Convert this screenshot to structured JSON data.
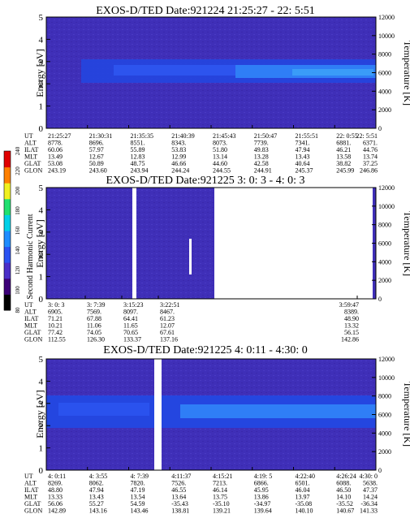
{
  "chart_data": [
    {
      "type": "heatmap",
      "title": "EXOS-D/TED   Date:921224  21:25:27 - 22: 5:51",
      "ylabel": "Energy [eV]",
      "ylabel_right": "Temperature [K]",
      "ylim": [
        0,
        5
      ],
      "yticks": [
        "0",
        "1",
        "2",
        "3",
        "4",
        "5"
      ],
      "y2lim": [
        0,
        12000
      ],
      "y2ticks": [
        "0",
        "2000",
        "4000",
        "6000",
        "8000",
        "10000",
        "12000"
      ],
      "t_start": "21:25:27",
      "t_end": "22: 5:51",
      "bands": [
        {
          "from": 2.0,
          "to": 3.1,
          "level": 140
        },
        {
          "from": 2.3,
          "to": 2.8,
          "level": 150
        }
      ],
      "table": {
        "rows": [
          "UT",
          "ALT",
          "ILAT",
          "MLT",
          "GLAT",
          "GLON"
        ],
        "columns": [
          [
            "21:25:27",
            "8778.",
            "60.06",
            "13.49",
            "53.08",
            "243.19"
          ],
          [
            "21:30:31",
            "8696.",
            "57.97",
            "12.67",
            "50.89",
            "243.60"
          ],
          [
            "21:35:35",
            "8551.",
            "55.89",
            "12.83",
            "48.75",
            "243.94"
          ],
          [
            "21:40:39",
            "8343.",
            "53.83",
            "12.99",
            "46.66",
            "244.24"
          ],
          [
            "21:45:43",
            "8073.",
            "51.80",
            "13.14",
            "44.60",
            "244.55"
          ],
          [
            "21:50:47",
            "7739.",
            "49.83",
            "13.28",
            "42.58",
            "244.91"
          ],
          [
            "21:55:51",
            "7341.",
            "47.94",
            "13.43",
            "40.64",
            "245.37"
          ],
          [
            "22: 0:55",
            "6881.",
            "46.21",
            "13.58",
            "38.82",
            "245.99"
          ],
          [
            "22: 5:51",
            "6371.",
            "44.76",
            "13.74",
            "37.25",
            "246.86"
          ]
        ]
      }
    },
    {
      "type": "heatmap",
      "title": "EXOS-D/TED   Date:921225  3: 0: 3 - 4: 0: 3",
      "ylabel": "Energy [eV]",
      "ylabel_right": "Temperature [K]",
      "ylim": [
        0,
        5
      ],
      "yticks": [
        "0",
        "1",
        "2",
        "3",
        "4",
        "5"
      ],
      "y2lim": [
        0,
        12000
      ],
      "y2ticks": [
        "0",
        "2000",
        "4000",
        "6000",
        "8000",
        "10000",
        "12000"
      ],
      "t_start": "3: 0: 3",
      "t_end": "3:59:47",
      "data_gaps": [
        [
          "3:13:00",
          "3:14:00"
        ],
        [
          "3:22:51",
          "3:59:47"
        ]
      ],
      "table": {
        "rows": [
          "UT",
          "ALT",
          "ILAT",
          "MLT",
          "GLAT",
          "GLON"
        ],
        "columns": [
          [
            "3: 0: 3",
            "6905.",
            "71.21",
            "10.21",
            "77.42",
            "112.55"
          ],
          [
            "3: 7:39",
            "7569.",
            "67.88",
            "11.06",
            "74.05",
            "126.30"
          ],
          [
            "3:15:23",
            "8097.",
            "64.41",
            "11.65",
            "70.65",
            "133.37"
          ],
          [
            "3:22:51",
            "8467.",
            "61.23",
            "12.07",
            "67.61",
            "137.16"
          ],
          [
            "3:59:47",
            "8389.",
            "48.90",
            "13.32",
            "56.15",
            "142.86"
          ]
        ]
      }
    },
    {
      "type": "heatmap",
      "title": "EXOS-D/TED   Date:921225  4: 0:11 - 4:30: 0",
      "ylabel": "Energy [eV]",
      "ylabel_right": "Temperature [K]",
      "ylim": [
        0,
        5
      ],
      "yticks": [
        "0",
        "1",
        "2",
        "3",
        "4",
        "5"
      ],
      "y2lim": [
        0,
        12000
      ],
      "y2ticks": [
        "0",
        "2000",
        "4000",
        "6000",
        "8000",
        "10000",
        "12000"
      ],
      "t_start": "4: 0:11",
      "t_end": "4:30: 0",
      "data_gaps": [
        [
          "4: 8:40",
          "4: 9:40"
        ]
      ],
      "bands": [
        {
          "from": 2.0,
          "to": 3.4,
          "level": 140
        },
        {
          "from": 2.3,
          "to": 2.8,
          "level": 150
        }
      ],
      "table": {
        "rows": [
          "UT",
          "ALT",
          "ILAT",
          "MLT",
          "GLAT",
          "GLON"
        ],
        "columns": [
          [
            "4: 0:11",
            "8269.",
            "48.80",
            "13.33",
            "56.06",
            "142.89"
          ],
          [
            "4: 3:55",
            "8062.",
            "47.94",
            "13.43",
            "55.27",
            "143.16"
          ],
          [
            "4: 7:39",
            "7820.",
            "47.19",
            "13.54",
            "54.59",
            "143.46"
          ],
          [
            "4:11:37",
            "7526.",
            "46.55",
            "13.64",
            "-35.43",
            "138.81"
          ],
          [
            "4:15:21",
            "7213.",
            "46.14",
            "13.75",
            "-35.10",
            "139.21"
          ],
          [
            "4:19: 5",
            "6866.",
            "45.95",
            "13.86",
            "-34.97",
            "139.64"
          ],
          [
            "4:22:40",
            "6501.",
            "46.04",
            "13.97",
            "-35.08",
            "140.10"
          ],
          [
            "4:26:24",
            "6088.",
            "46.50",
            "14.10",
            "-35.52",
            "140.67"
          ],
          [
            "4:30: 0",
            "5638.",
            "47.37",
            "14.24",
            "-36.34",
            "141.33"
          ]
        ]
      }
    }
  ],
  "colorbar": {
    "label": "Second Harmonic Current",
    "ticks": [
      "80",
      "100",
      "120",
      "140",
      "160",
      "180",
      "200",
      "220",
      "240"
    ],
    "range": [
      80,
      240
    ],
    "colors": [
      "#000000",
      "#3c0078",
      "#4a2ec8",
      "#2a52f2",
      "#1e8cff",
      "#00d0e8",
      "#20e070",
      "#f0f020",
      "#ff8000",
      "#e00000"
    ]
  }
}
